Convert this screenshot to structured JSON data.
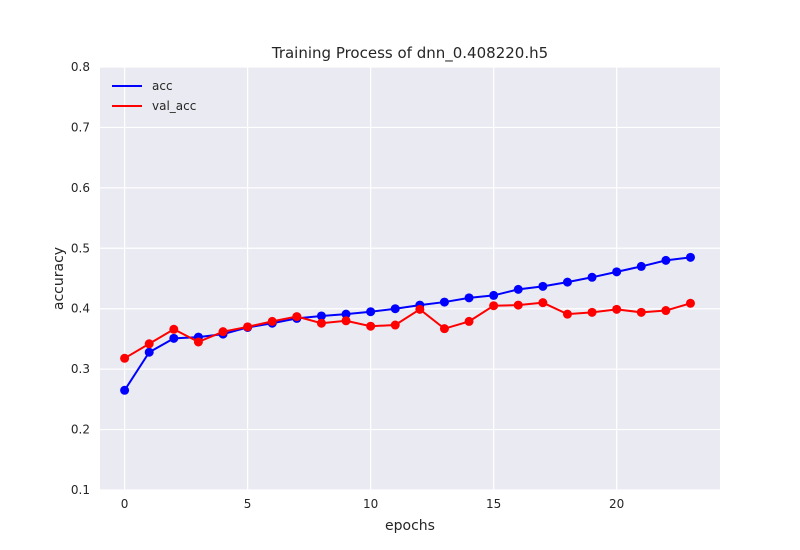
{
  "chart_data": {
    "type": "line",
    "title": "Training Process of dnn_0.408220.h5",
    "xlabel": "epochs",
    "ylabel": "accuracy",
    "xlim": [
      -1,
      24.2
    ],
    "ylim": [
      0.1,
      0.8
    ],
    "x_ticks": [
      0,
      5,
      10,
      15,
      20
    ],
    "y_ticks": [
      0.1,
      0.2,
      0.3,
      0.4,
      0.5,
      0.6,
      0.7,
      0.8
    ],
    "x_tick_labels": [
      "0",
      "5",
      "10",
      "15",
      "20"
    ],
    "y_tick_labels": [
      "0.1",
      "0.2",
      "0.3",
      "0.4",
      "0.5",
      "0.6",
      "0.7",
      "0.8"
    ],
    "grid": true,
    "legend_position": "top-left",
    "x": [
      0,
      1,
      2,
      3,
      4,
      5,
      6,
      7,
      8,
      9,
      10,
      11,
      12,
      13,
      14,
      15,
      16,
      17,
      18,
      19,
      20,
      21,
      22,
      23
    ],
    "series": [
      {
        "name": "acc",
        "color": "#0000ff",
        "values": [
          0.265,
          0.328,
          0.351,
          0.353,
          0.358,
          0.369,
          0.376,
          0.384,
          0.388,
          0.391,
          0.395,
          0.4,
          0.406,
          0.411,
          0.418,
          0.422,
          0.432,
          0.437,
          0.444,
          0.452,
          0.461,
          0.47,
          0.48,
          0.485
        ]
      },
      {
        "name": "val_acc",
        "color": "#ff0000",
        "values": [
          0.318,
          0.342,
          0.366,
          0.345,
          0.362,
          0.37,
          0.379,
          0.387,
          0.376,
          0.38,
          0.371,
          0.373,
          0.399,
          0.367,
          0.379,
          0.405,
          0.406,
          0.41,
          0.391,
          0.394,
          0.399,
          0.394,
          0.397,
          0.409
        ]
      }
    ]
  }
}
